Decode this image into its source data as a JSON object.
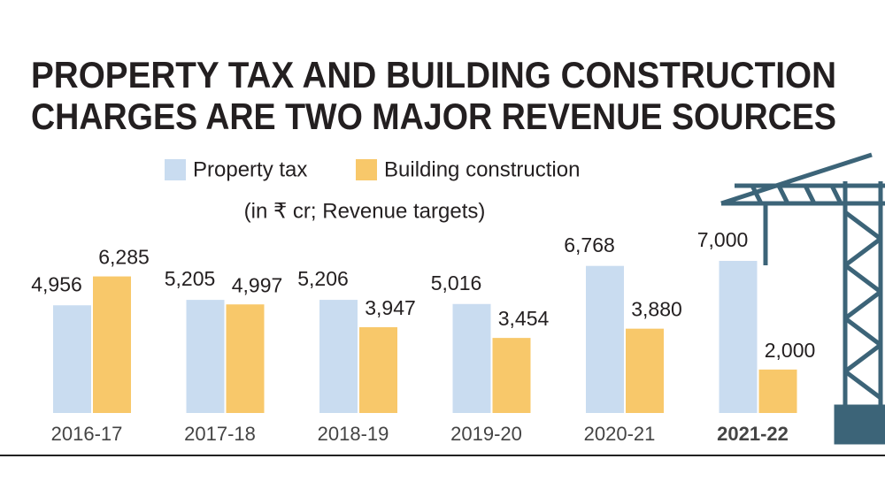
{
  "chart_data": {
    "type": "bar",
    "title": [
      "PROPERTY TAX AND BUILDING CONSTRUCTION",
      "CHARGES ARE TWO MAJOR REVENUE SOURCES"
    ],
    "subtitle": "(in ₹ cr; Revenue targets)",
    "categories": [
      "2016-17",
      "2017-18",
      "2018-19",
      "2019-20",
      "2020-21",
      "2021-22"
    ],
    "series": [
      {
        "name": "Property tax",
        "color": "#c9dcf0",
        "values": [
          4956,
          5205,
          5206,
          5016,
          6768,
          7000
        ],
        "value_labels": [
          "4,956",
          "5,205",
          "5,206",
          "5,016",
          "6,768",
          "7,000"
        ]
      },
      {
        "name": "Building construction",
        "color": "#f8c86a",
        "values": [
          6285,
          4997,
          3947,
          3454,
          3880,
          2000
        ],
        "value_labels": [
          "6,285",
          "4,997",
          "3,947",
          "3,454",
          "3,880",
          "2,000"
        ]
      }
    ]
  }
}
